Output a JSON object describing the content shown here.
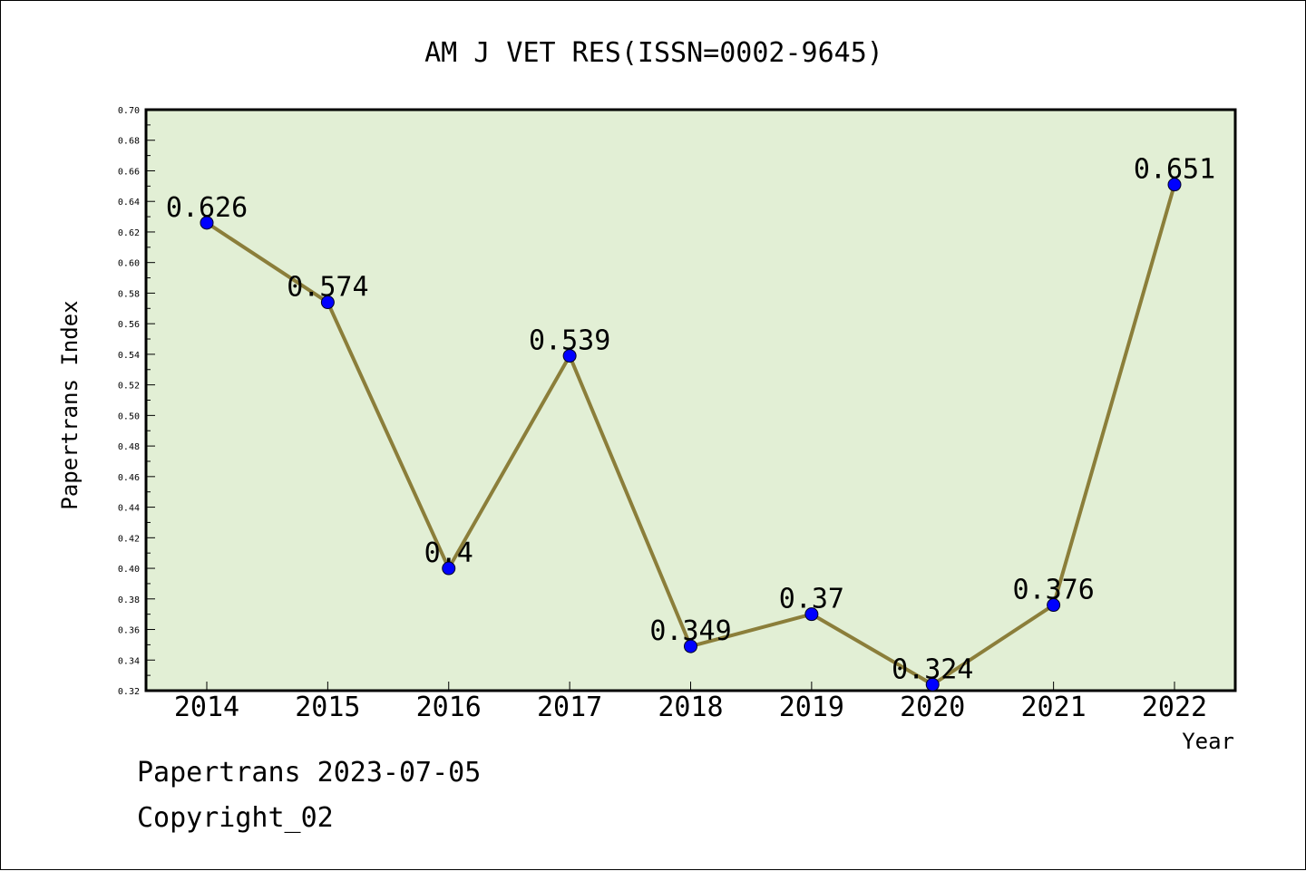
{
  "chart_data": {
    "type": "line",
    "title": "AM J VET RES(ISSN=0002-9645)",
    "xlabel": "Year",
    "ylabel": "Papertrans Index",
    "categories": [
      "2014",
      "2015",
      "2016",
      "2017",
      "2018",
      "2019",
      "2020",
      "2021",
      "2022"
    ],
    "values": [
      0.626,
      0.574,
      0.4,
      0.539,
      0.349,
      0.37,
      0.324,
      0.376,
      0.651
    ],
    "data_labels": [
      "0.626",
      "0.574",
      "0.4",
      "0.539",
      "0.349",
      "0.37",
      "0.324",
      "0.376",
      "0.651"
    ],
    "ylim": [
      0.32,
      0.7
    ],
    "yticks": [
      "0.32",
      "0.34",
      "0.36",
      "0.38",
      "0.40",
      "0.42",
      "0.44",
      "0.46",
      "0.48",
      "0.50",
      "0.52",
      "0.54",
      "0.56",
      "0.58",
      "0.60",
      "0.62",
      "0.64",
      "0.66",
      "0.68",
      "0.70"
    ],
    "grid": false,
    "colors": {
      "plot_background": "#e2efd5",
      "line": "#8b7e3a",
      "marker": "#0000ff"
    }
  },
  "footer": {
    "date": "Papertrans 2023-07-05",
    "copyright": "Copyright_02"
  }
}
